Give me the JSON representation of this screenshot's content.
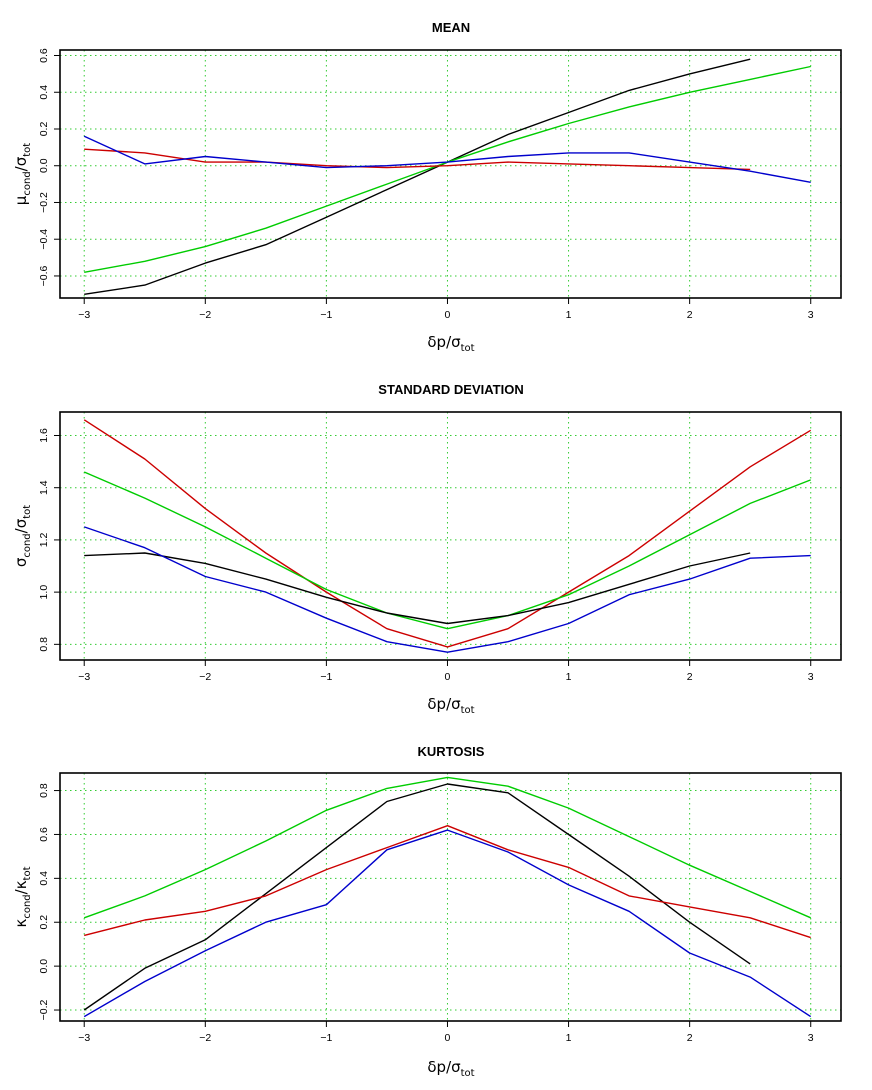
{
  "chart_data": [
    {
      "type": "line",
      "title": "MEAN",
      "xlabel_main": "δp/σ",
      "xlabel_sub": "tot",
      "ylabel_main": "μ",
      "ylabel_sub1": "cond",
      "ylabel_sep": "/σ",
      "ylabel_sub2": "tot",
      "xlim": [
        -3.2,
        3.25
      ],
      "ylim": [
        -0.72,
        0.63
      ],
      "xticks": [
        -3,
        -2,
        -1,
        0,
        1,
        2,
        3
      ],
      "xtick_labels": [
        "−3",
        "−2",
        "−1",
        "0",
        "1",
        "2",
        "3"
      ],
      "yticks": [
        -0.6,
        -0.4,
        -0.2,
        0.0,
        0.2,
        0.4,
        0.6
      ],
      "ytick_labels": [
        "−0.6",
        "−0.4",
        "−0.2",
        "0.0",
        "0.2",
        "0.4",
        "0.6"
      ],
      "grid": true,
      "series": [
        {
          "color": "#000000",
          "x": [
            -3,
            -2.5,
            -2,
            -1.5,
            -1,
            -0.5,
            0,
            0.5,
            1,
            1.5,
            2,
            2.5
          ],
          "values": [
            -0.7,
            -0.65,
            -0.53,
            -0.43,
            -0.28,
            -0.13,
            0.02,
            0.17,
            0.29,
            0.41,
            0.5,
            0.58
          ]
        },
        {
          "color": "#00cc00",
          "x": [
            -3,
            -2.5,
            -2,
            -1.5,
            -1,
            -0.5,
            0,
            0.5,
            1,
            1.5,
            2,
            2.5,
            3
          ],
          "values": [
            -0.58,
            -0.52,
            -0.44,
            -0.34,
            -0.22,
            -0.1,
            0.02,
            0.13,
            0.23,
            0.32,
            0.4,
            0.47,
            0.54
          ]
        },
        {
          "color": "#cc0000",
          "x": [
            -3,
            -2.5,
            -2,
            -1.5,
            -1,
            -0.5,
            0,
            0.5,
            1,
            1.5,
            2,
            2.5
          ],
          "values": [
            0.09,
            0.07,
            0.02,
            0.02,
            0.0,
            -0.01,
            0.0,
            0.02,
            0.01,
            0.0,
            -0.01,
            -0.02
          ]
        },
        {
          "color": "#0000cc",
          "x": [
            -3,
            -2.5,
            -2,
            -1.5,
            -1,
            -0.5,
            0,
            0.5,
            1,
            1.5,
            2,
            2.5,
            3
          ],
          "values": [
            0.16,
            0.01,
            0.05,
            0.02,
            -0.01,
            0.0,
            0.02,
            0.05,
            0.07,
            0.07,
            0.02,
            -0.03,
            -0.09
          ]
        }
      ]
    },
    {
      "type": "line",
      "title": "STANDARD DEVIATION",
      "xlabel_main": "δp/σ",
      "xlabel_sub": "tot",
      "ylabel_main": "σ",
      "ylabel_sub1": "cond",
      "ylabel_sep": "/σ",
      "ylabel_sub2": "tot",
      "xlim": [
        -3.2,
        3.25
      ],
      "ylim": [
        0.74,
        1.69
      ],
      "xticks": [
        -3,
        -2,
        -1,
        0,
        1,
        2,
        3
      ],
      "xtick_labels": [
        "−3",
        "−2",
        "−1",
        "0",
        "1",
        "2",
        "3"
      ],
      "yticks": [
        0.8,
        1.0,
        1.2,
        1.4,
        1.6
      ],
      "ytick_labels": [
        "0.8",
        "1.0",
        "1.2",
        "1.4",
        "1.6"
      ],
      "grid": true,
      "series": [
        {
          "color": "#cc0000",
          "x": [
            -3,
            -2.5,
            -2,
            -1.5,
            -1,
            -0.5,
            0,
            0.5,
            1,
            1.5,
            2,
            2.5,
            3
          ],
          "values": [
            1.66,
            1.51,
            1.32,
            1.15,
            1.0,
            0.86,
            0.79,
            0.86,
            1.0,
            1.14,
            1.31,
            1.48,
            1.62
          ]
        },
        {
          "color": "#00cc00",
          "x": [
            -3,
            -2.5,
            -2,
            -1.5,
            -1,
            -0.5,
            0,
            0.5,
            1,
            1.5,
            2,
            2.5,
            3
          ],
          "values": [
            1.46,
            1.36,
            1.25,
            1.13,
            1.01,
            0.92,
            0.86,
            0.91,
            0.99,
            1.1,
            1.22,
            1.34,
            1.43
          ]
        },
        {
          "color": "#000000",
          "x": [
            -3,
            -2.5,
            -2,
            -1.5,
            -1,
            -0.5,
            0,
            0.5,
            1,
            1.5,
            2,
            2.5
          ],
          "values": [
            1.14,
            1.15,
            1.11,
            1.05,
            0.98,
            0.92,
            0.88,
            0.91,
            0.96,
            1.03,
            1.1,
            1.15
          ]
        },
        {
          "color": "#0000cc",
          "x": [
            -3,
            -2.5,
            -2,
            -1.5,
            -1,
            -0.5,
            0,
            0.5,
            1,
            1.5,
            2,
            2.5,
            3
          ],
          "values": [
            1.25,
            1.17,
            1.06,
            1.0,
            0.9,
            0.81,
            0.77,
            0.81,
            0.88,
            0.99,
            1.05,
            1.13,
            1.14
          ]
        }
      ]
    },
    {
      "type": "line",
      "title": "KURTOSIS",
      "xlabel_main": "δp/σ",
      "xlabel_sub": "tot",
      "ylabel_main": "κ",
      "ylabel_sub1": "cond",
      "ylabel_sep": "/κ",
      "ylabel_sub2": "tot",
      "xlim": [
        -3.2,
        3.25
      ],
      "ylim": [
        -0.25,
        0.88
      ],
      "xticks": [
        -3,
        -2,
        -1,
        0,
        1,
        2,
        3
      ],
      "xtick_labels": [
        "−3",
        "−2",
        "−1",
        "0",
        "1",
        "2",
        "3"
      ],
      "yticks": [
        -0.2,
        0.0,
        0.2,
        0.4,
        0.6,
        0.8
      ],
      "ytick_labels": [
        "−0.2",
        "0.0",
        "0.2",
        "0.4",
        "0.6",
        "0.8"
      ],
      "grid": true,
      "series": [
        {
          "color": "#00cc00",
          "x": [
            -3,
            -2.5,
            -2,
            -1.5,
            -1,
            -0.5,
            0,
            0.5,
            1,
            1.5,
            2,
            2.5,
            3
          ],
          "values": [
            0.22,
            0.32,
            0.44,
            0.57,
            0.71,
            0.81,
            0.86,
            0.82,
            0.72,
            0.59,
            0.46,
            0.34,
            0.22
          ]
        },
        {
          "color": "#000000",
          "x": [
            -3,
            -2.5,
            -2,
            -1.5,
            -1,
            -0.5,
            0,
            0.5,
            1,
            1.5,
            2,
            2.5
          ],
          "values": [
            -0.2,
            -0.01,
            0.12,
            0.33,
            0.54,
            0.75,
            0.83,
            0.79,
            0.6,
            0.41,
            0.2,
            0.01
          ]
        },
        {
          "color": "#cc0000",
          "x": [
            -3,
            -2.5,
            -2,
            -1.5,
            -1,
            -0.5,
            0,
            0.5,
            1,
            1.5,
            2,
            2.5,
            3
          ],
          "values": [
            0.14,
            0.21,
            0.25,
            0.32,
            0.44,
            0.54,
            0.64,
            0.53,
            0.45,
            0.32,
            0.27,
            0.22,
            0.13
          ]
        },
        {
          "color": "#0000cc",
          "x": [
            -3,
            -2.5,
            -2,
            -1.5,
            -1,
            -0.5,
            0,
            0.5,
            1,
            1.5,
            2,
            2.5,
            3
          ],
          "values": [
            -0.23,
            -0.07,
            0.07,
            0.2,
            0.28,
            0.53,
            0.62,
            0.52,
            0.37,
            0.25,
            0.06,
            -0.05,
            -0.23
          ]
        }
      ]
    }
  ]
}
